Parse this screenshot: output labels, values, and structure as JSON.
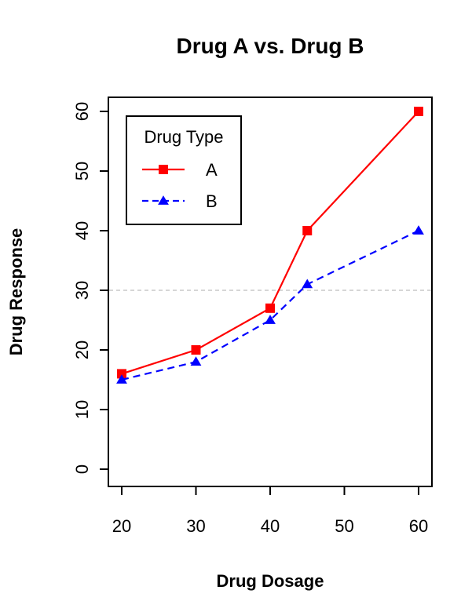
{
  "chart_data": {
    "type": "line",
    "title": "Drug A vs. Drug B",
    "xlabel": "Drug Dosage",
    "ylabel": "Drug Response",
    "x": [
      20,
      30,
      40,
      45,
      60
    ],
    "xticks": [
      "20",
      "30",
      "40",
      "50",
      "60"
    ],
    "yticks": [
      "0",
      "10",
      "20",
      "30",
      "40",
      "50",
      "60"
    ],
    "xlim": [
      20,
      60
    ],
    "ylim": [
      0,
      60
    ],
    "grid": false,
    "reference_line": {
      "y": 30,
      "color": "#c8c8c8",
      "style": "dashed"
    },
    "legend": {
      "title": "Drug Type",
      "placement": "top-left"
    },
    "series": [
      {
        "name": "A",
        "values": [
          16,
          20,
          27,
          40,
          60
        ],
        "color": "#ff0000",
        "marker": "square",
        "line": "solid"
      },
      {
        "name": "B",
        "values": [
          15,
          18,
          25,
          31,
          40
        ],
        "color": "#0000ff",
        "marker": "triangle",
        "line": "dashed"
      }
    ]
  }
}
